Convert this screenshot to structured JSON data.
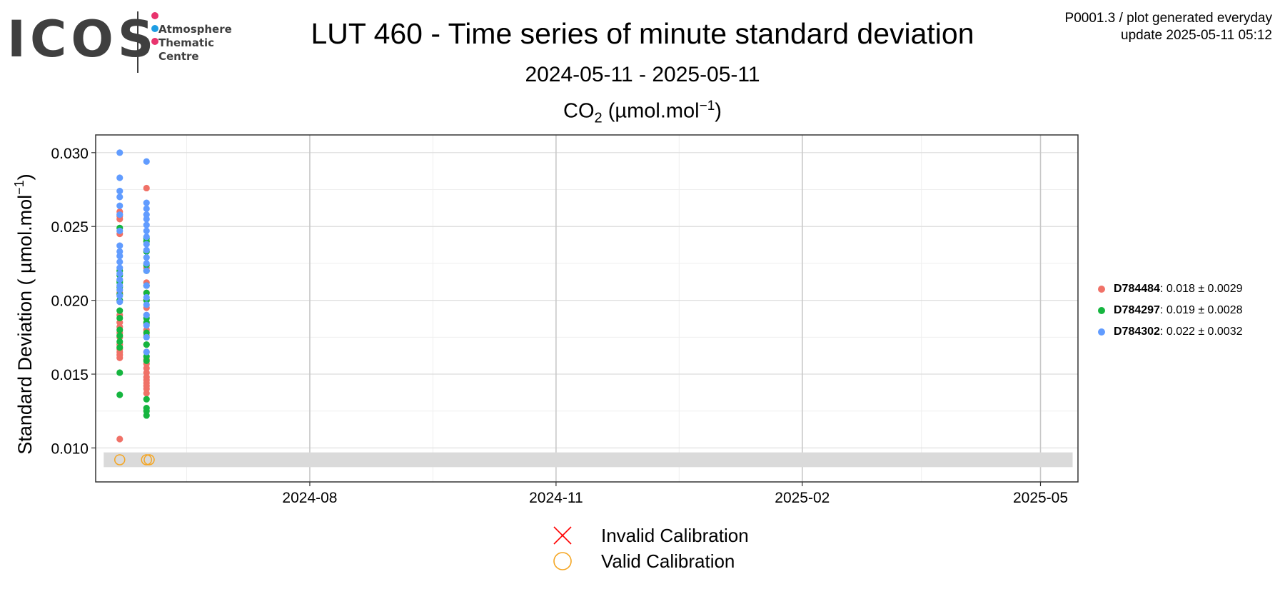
{
  "logo": {
    "wordmark": "ICOS",
    "caption": [
      "Atmosphere",
      "Thematic",
      "Centre"
    ],
    "dot_colors": [
      "#e8336d",
      "#1e9de3",
      "#e8336d"
    ]
  },
  "header": {
    "title": "LUT 460 - Time series of minute standard deviation",
    "date_range": "2024-05-11 - 2025-05-11",
    "plot_id": "P0001.3 / plot generated everyday",
    "update": "update  2025-05-11 05:12"
  },
  "chart_data": {
    "type": "scatter",
    "title_species": "CO",
    "title_species_sub": "2",
    "title_unit": "(µmol.mol",
    "title_unit_sup": "−1",
    "title_unit_close": ")",
    "ylabel": "Standard Deviation ( µmol.mol",
    "ylabel_sup": "−1",
    "ylabel_close": ")",
    "xlim": [
      "2024-05-13",
      "2025-05-15"
    ],
    "ylim": [
      0.0077,
      0.0312
    ],
    "x_ticks": [
      "2024-08",
      "2024-11",
      "2025-02",
      "2025-05"
    ],
    "x_tick_dates": [
      "2024-08-01",
      "2024-11-01",
      "2025-02-01",
      "2025-05-01"
    ],
    "y_ticks": [
      0.01,
      0.015,
      0.02,
      0.025,
      0.03
    ],
    "y_tick_labels": [
      "0.010",
      "0.015",
      "0.020",
      "0.025",
      "0.030"
    ],
    "grid": true,
    "band": {
      "from": "2024-05-16",
      "to": "2025-05-13",
      "y_from": 0.0087,
      "y_to": 0.0097,
      "color": "#dadada"
    },
    "series": [
      {
        "name": "D784484",
        "summary": ": 0.018 ± 0.0029",
        "color": "#f07167",
        "dates": [
          "2024-05-22",
          "2024-05-22",
          "2024-05-22",
          "2024-05-22",
          "2024-05-22",
          "2024-05-22",
          "2024-05-22",
          "2024-05-22",
          "2024-05-22",
          "2024-05-22",
          "2024-05-22",
          "2024-05-22",
          "2024-05-22",
          "2024-05-22",
          "2024-05-22",
          "2024-05-22",
          "2024-06-01",
          "2024-06-01",
          "2024-06-01",
          "2024-06-01",
          "2024-06-01",
          "2024-06-01",
          "2024-06-01",
          "2024-06-01",
          "2024-06-01",
          "2024-06-01",
          "2024-06-01",
          "2024-06-01",
          "2024-06-01",
          "2024-06-01",
          "2024-06-01",
          "2024-06-01",
          "2024-06-01",
          "2024-06-01",
          "2024-06-01",
          "2024-06-01",
          "2024-06-01",
          "2024-06-01",
          "2024-06-01",
          "2024-06-01"
        ],
        "values": [
          0.0106,
          0.0161,
          0.0163,
          0.0165,
          0.0167,
          0.017,
          0.0175,
          0.0178,
          0.0182,
          0.0185,
          0.019,
          0.0205,
          0.0245,
          0.0255,
          0.026,
          0.0257,
          0.0137,
          0.014,
          0.0142,
          0.0144,
          0.0146,
          0.0148,
          0.0151,
          0.0154,
          0.0157,
          0.016,
          0.0165,
          0.017,
          0.0176,
          0.018,
          0.0184,
          0.019,
          0.0195,
          0.02,
          0.0205,
          0.021,
          0.0212,
          0.0222,
          0.024,
          0.0276
        ]
      },
      {
        "name": "D784297",
        "summary": ": 0.019 ± 0.0028",
        "color": "#15b53f",
        "dates": [
          "2024-05-22",
          "2024-05-22",
          "2024-05-22",
          "2024-05-22",
          "2024-05-22",
          "2024-05-22",
          "2024-05-22",
          "2024-05-22",
          "2024-05-22",
          "2024-05-22",
          "2024-05-22",
          "2024-05-22",
          "2024-05-22",
          "2024-05-22",
          "2024-05-22",
          "2024-05-22",
          "2024-06-01",
          "2024-06-01",
          "2024-06-01",
          "2024-06-01",
          "2024-06-01",
          "2024-06-01",
          "2024-06-01",
          "2024-06-01",
          "2024-06-01",
          "2024-06-01",
          "2024-06-01",
          "2024-06-01",
          "2024-06-01",
          "2024-06-01",
          "2024-06-01",
          "2024-06-01",
          "2024-06-01",
          "2024-06-01"
        ],
        "values": [
          0.0136,
          0.0151,
          0.0168,
          0.0172,
          0.0176,
          0.018,
          0.0188,
          0.0193,
          0.02,
          0.0204,
          0.0209,
          0.0213,
          0.0217,
          0.022,
          0.0249,
          0.0212,
          0.0122,
          0.0125,
          0.0127,
          0.0133,
          0.0159,
          0.0162,
          0.017,
          0.0178,
          0.0185,
          0.0188,
          0.02,
          0.0205,
          0.021,
          0.022,
          0.0224,
          0.0233,
          0.024,
          0.0242
        ]
      },
      {
        "name": "D784302",
        "summary": ": 0.022 ± 0.0032",
        "color": "#619cff",
        "dates": [
          "2024-05-22",
          "2024-05-22",
          "2024-05-22",
          "2024-05-22",
          "2024-05-22",
          "2024-05-22",
          "2024-05-22",
          "2024-05-22",
          "2024-05-22",
          "2024-05-22",
          "2024-05-22",
          "2024-05-22",
          "2024-05-22",
          "2024-05-22",
          "2024-05-22",
          "2024-05-22",
          "2024-05-22",
          "2024-05-22",
          "2024-06-01",
          "2024-06-01",
          "2024-06-01",
          "2024-06-01",
          "2024-06-01",
          "2024-06-01",
          "2024-06-01",
          "2024-06-01",
          "2024-06-01",
          "2024-06-01",
          "2024-06-01",
          "2024-06-01",
          "2024-06-01",
          "2024-06-01",
          "2024-06-01",
          "2024-06-01",
          "2024-06-01",
          "2024-06-01",
          "2024-06-01",
          "2024-06-01"
        ],
        "values": [
          0.03,
          0.0283,
          0.0274,
          0.027,
          0.0264,
          0.0258,
          0.0247,
          0.0237,
          0.0233,
          0.023,
          0.0226,
          0.0222,
          0.0218,
          0.0214,
          0.021,
          0.0207,
          0.0203,
          0.0199,
          0.0294,
          0.0266,
          0.0262,
          0.0258,
          0.0255,
          0.0251,
          0.0247,
          0.0243,
          0.0238,
          0.0234,
          0.0229,
          0.0225,
          0.022,
          0.021,
          0.0202,
          0.0197,
          0.019,
          0.0183,
          0.0175,
          0.0165
        ]
      }
    ],
    "calibrations": {
      "valid": {
        "label": "Valid Calibration",
        "color": "#f5a623",
        "dates": [
          "2024-05-22",
          "2024-06-01",
          "2024-06-02"
        ],
        "values": [
          0.0092,
          0.0092,
          0.0092
        ]
      },
      "invalid": {
        "label": "Invalid Calibration",
        "color": "#ff0000",
        "dates": [],
        "values": []
      }
    }
  }
}
